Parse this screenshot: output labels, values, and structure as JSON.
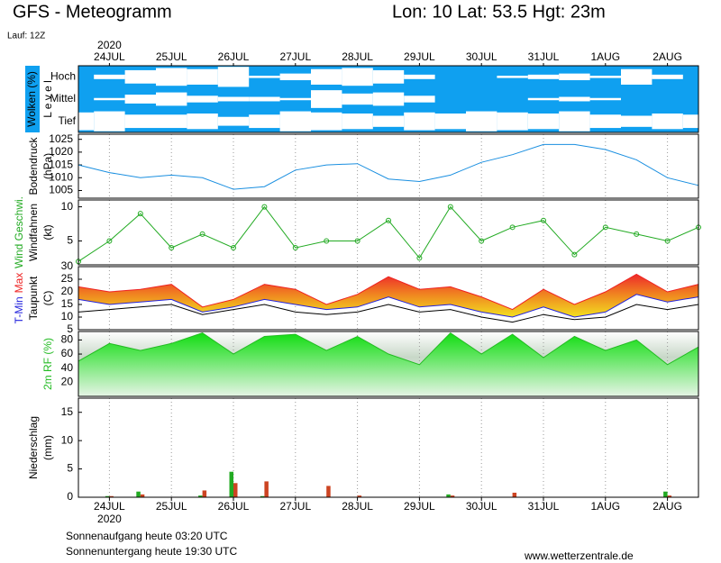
{
  "header": {
    "title": "GFS - Meteogramm",
    "location": "Lon: 10 Lat: 53.5 Hgt: 23m",
    "run": "Lauf: 12Z"
  },
  "x_axis": {
    "year": "2020",
    "categories": [
      null,
      "24JUL",
      null,
      "25JUL",
      null,
      "26JUL",
      null,
      "27JUL",
      null,
      "28JUL",
      null,
      "29JUL",
      null,
      "30JUL",
      null,
      "31JUL",
      null,
      "1AUG",
      null,
      "2AUG",
      null
    ]
  },
  "footer": {
    "sunrise": "Sonnenaufgang heute 03:20 UTC",
    "sunset": "Sonnenuntergang heute 19:30 UTC",
    "source": "www.wetterzentrale.de"
  },
  "chart_data": [
    {
      "type": "cloud-cover",
      "ylabel": "Wolken (%)",
      "level_label": "L e v e l",
      "ylim": [
        0,
        100
      ],
      "series": [
        {
          "name": "Hoch",
          "color": "#ffffff",
          "values": [
            0,
            20,
            60,
            80,
            70,
            90,
            10,
            30,
            70,
            80,
            60,
            20,
            0,
            0,
            10,
            20,
            30,
            10,
            70,
            20,
            0
          ]
        },
        {
          "name": "Mittel",
          "color": "#ffffff",
          "values": [
            0,
            10,
            40,
            60,
            30,
            20,
            20,
            10,
            80,
            50,
            60,
            30,
            0,
            0,
            0,
            10,
            20,
            10,
            0,
            0,
            0
          ]
        },
        {
          "name": "Tief",
          "color": "#ffffff",
          "values": [
            80,
            90,
            60,
            60,
            70,
            40,
            60,
            90,
            80,
            70,
            50,
            80,
            70,
            90,
            80,
            70,
            90,
            60,
            50,
            70,
            60
          ]
        }
      ]
    },
    {
      "type": "line",
      "ylabel": "Bodendruck",
      "unit": "(hPa)",
      "ylim": [
        1002,
        1027
      ],
      "yticks": [
        1005,
        1010,
        1015,
        1020,
        1025
      ],
      "series": [
        {
          "color": "#1a8fe0",
          "values": [
            1015,
            1012,
            1010,
            1011,
            1010,
            1005.5,
            1006.5,
            1013,
            1015,
            1015.5,
            1009.5,
            1008.5,
            1011,
            1016,
            1019,
            1023,
            1023,
            1021,
            1017,
            1010,
            1007
          ]
        }
      ]
    },
    {
      "type": "wind",
      "ylabel": "Windfahnen",
      "unit": "(kt)",
      "ylim": [
        1.5,
        11
      ],
      "yticks": [
        5,
        10
      ],
      "series": [
        {
          "name": "Wind Geschwi.",
          "color": "#22aa22",
          "values": [
            2,
            5,
            9,
            4,
            6,
            4,
            10,
            4,
            5,
            5,
            8,
            2.5,
            10,
            5,
            7,
            8,
            3,
            7,
            6,
            5,
            7
          ]
        }
      ]
    },
    {
      "type": "temperature",
      "ylabel": "Taupunkt",
      "unit": "(C)",
      "ylim": [
        5,
        30
      ],
      "yticks": [
        5,
        10,
        15,
        20,
        25,
        30
      ],
      "series": [
        {
          "name": "T-Min",
          "color": "#2222dd",
          "values": [
            17,
            15,
            16,
            17,
            12,
            14,
            17,
            15,
            13,
            14,
            18,
            14,
            15,
            12,
            10,
            14,
            10,
            12,
            19,
            16,
            18
          ]
        },
        {
          "name": "Max",
          "color": "#ee2222",
          "values": [
            22,
            20,
            21,
            23,
            14,
            17,
            23,
            21,
            15,
            19,
            26,
            21,
            22,
            18,
            13,
            21,
            15,
            20,
            27,
            20,
            23
          ]
        },
        {
          "name": "Taupunkt",
          "color": "#000000",
          "values": [
            12,
            13,
            14,
            15,
            11,
            13,
            15,
            12,
            11,
            12,
            15,
            12,
            13,
            10,
            8,
            11,
            9,
            10,
            15,
            13,
            15
          ]
        }
      ]
    },
    {
      "type": "area",
      "ylim": [
        0,
        92
      ],
      "yticks": [
        20,
        40,
        60,
        80
      ],
      "series": [
        {
          "name": "2m RF (%)",
          "color": "#22bb22",
          "values": [
            50,
            75,
            65,
            75,
            90,
            60,
            85,
            88,
            65,
            85,
            60,
            45,
            90,
            60,
            88,
            55,
            85,
            65,
            80,
            45,
            70
          ]
        }
      ]
    },
    {
      "type": "bar",
      "ylabel": "Niederschlag",
      "unit": "(mm)",
      "ylim": [
        0,
        17.5
      ],
      "yticks": [
        0,
        5,
        10,
        15
      ],
      "series": [
        {
          "color": "#22aa22",
          "values": [
            0,
            0.2,
            1,
            0,
            0.3,
            4.5,
            0.2,
            0,
            0,
            0,
            0,
            0,
            0.5,
            0,
            0,
            0,
            0,
            0,
            0,
            1,
            0
          ]
        },
        {
          "color": "#cc4422",
          "values": [
            0,
            0.2,
            0.5,
            0,
            1.2,
            2.5,
            2.8,
            0,
            2,
            0.3,
            0,
            0,
            0.3,
            0,
            0.8,
            0,
            0,
            0,
            0,
            0.3,
            1
          ]
        }
      ]
    }
  ]
}
